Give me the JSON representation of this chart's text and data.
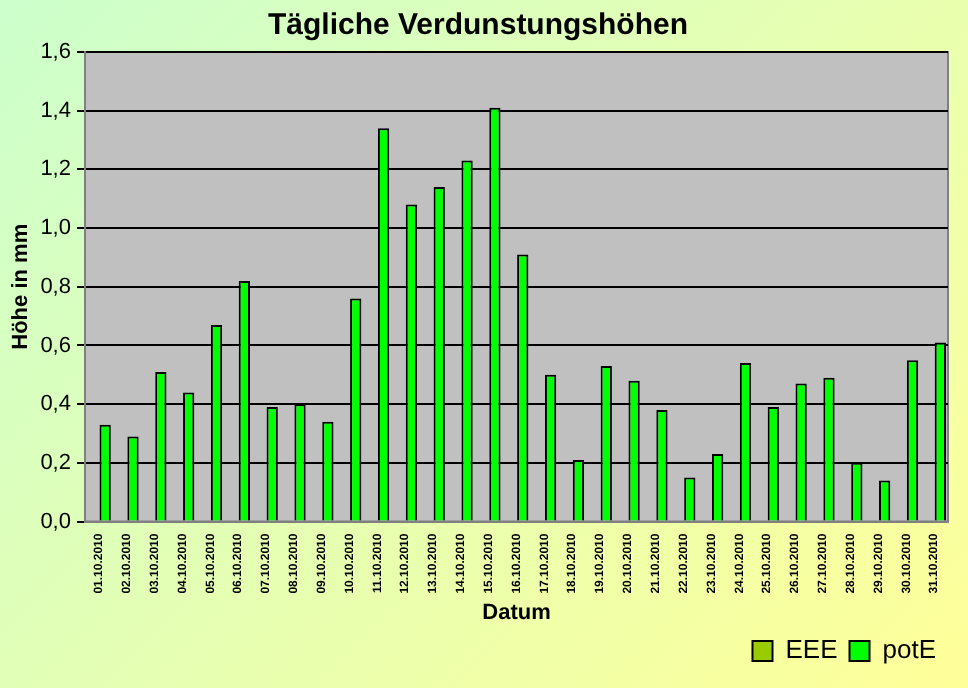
{
  "chart_data": {
    "type": "bar",
    "title": "Tägliche Verdunstungshöhen",
    "xlabel": "Datum",
    "ylabel": "Höhe in mm",
    "categories": [
      "01.10.2010",
      "02.10.2010",
      "03.10.2010",
      "04.10.2010",
      "05.10.2010",
      "06.10.2010",
      "07.10.2010",
      "08.10.2010",
      "09.10.2010",
      "10.10.2010",
      "11.10.2010",
      "12.10.2010",
      "13.10.2010",
      "14.10.2010",
      "15.10.2010",
      "16.10.2010",
      "17.10.2010",
      "18.10.2010",
      "19.10.2010",
      "20.10.2010",
      "21.10.2010",
      "22.10.2010",
      "23.10.2010",
      "24.10.2010",
      "25.10.2010",
      "26.10.2010",
      "27.10.2010",
      "28.10.2010",
      "29.10.2010",
      "30.10.2010",
      "31.10.2010"
    ],
    "series": [
      {
        "name": "EEE",
        "color": "#99cc00",
        "values": [
          null,
          null,
          null,
          null,
          null,
          null,
          null,
          null,
          null,
          null,
          null,
          null,
          null,
          null,
          null,
          null,
          null,
          null,
          null,
          null,
          null,
          null,
          null,
          null,
          null,
          null,
          null,
          null,
          null,
          null,
          null
        ]
      },
      {
        "name": "potE",
        "color": "#00ff00",
        "values": [
          0.33,
          0.29,
          0.51,
          0.44,
          0.67,
          0.82,
          0.39,
          0.4,
          0.34,
          0.76,
          1.34,
          1.08,
          1.14,
          1.23,
          1.41,
          0.91,
          0.5,
          0.21,
          0.53,
          0.48,
          0.38,
          0.15,
          0.23,
          0.54,
          0.39,
          0.47,
          0.49,
          0.2,
          0.14,
          0.55,
          0.61
        ]
      }
    ],
    "ylim": [
      0,
      1.6
    ],
    "yticks": [
      {
        "value": 0,
        "label": "0,0"
      },
      {
        "value": 0.2,
        "label": "0,2"
      },
      {
        "value": 0.4,
        "label": "0,4"
      },
      {
        "value": 0.6,
        "label": "0,6"
      },
      {
        "value": 0.8,
        "label": "0,8"
      },
      {
        "value": 1.0,
        "label": "1,0"
      },
      {
        "value": 1.2,
        "label": "1,2"
      },
      {
        "value": 1.4,
        "label": "1,4"
      },
      {
        "value": 1.6,
        "label": "1,6"
      }
    ],
    "grid": "y",
    "legend": "bottom right"
  }
}
